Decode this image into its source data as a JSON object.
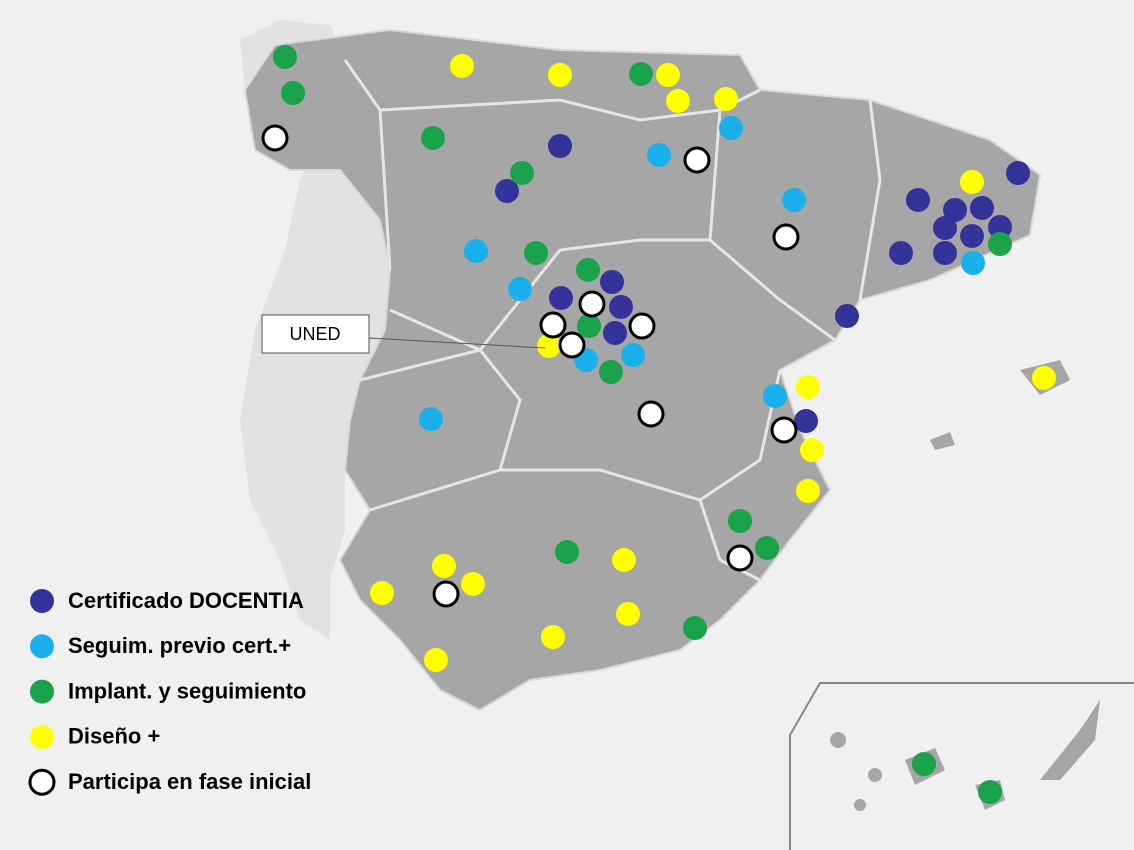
{
  "legend": [
    {
      "label": "Certificado DOCENTIA",
      "color": "#333399"
    },
    {
      "label": "Seguim. previo cert.+",
      "color": "#1ab0ec"
    },
    {
      "label": "Implant. y seguimiento",
      "color": "#1aa34a"
    },
    {
      "label": "Diseño +",
      "color": "#ffff00"
    },
    {
      "label": "Participa en fase inicial",
      "color": "#ffffff"
    }
  ],
  "annotation": "UNED"
}
